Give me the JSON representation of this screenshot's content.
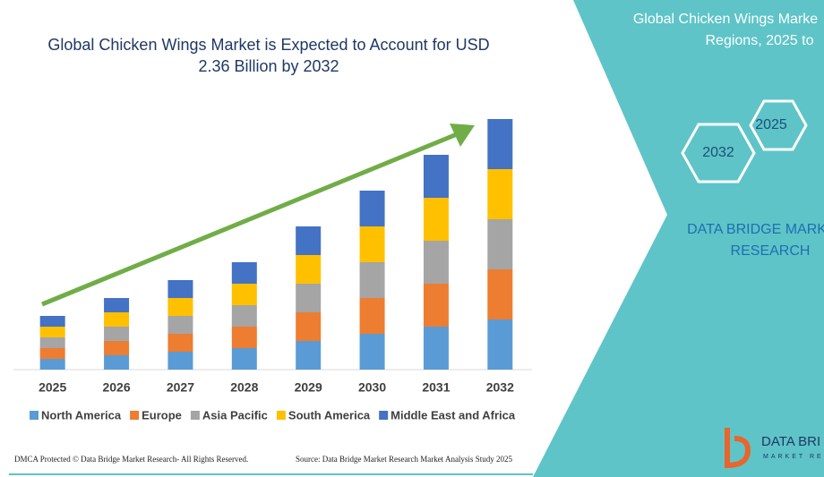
{
  "chart_data": {
    "type": "bar",
    "stacked": true,
    "title": "Global Chicken Wings Market is Expected to Account for USD 2.36 Billion by 2032",
    "categories": [
      "2025",
      "2026",
      "2027",
      "2028",
      "2029",
      "2030",
      "2031",
      "2032"
    ],
    "series": [
      {
        "name": "North America",
        "color": "#5b9bd5",
        "values": [
          12,
          16,
          20,
          24,
          32,
          40,
          48,
          56
        ]
      },
      {
        "name": "Europe",
        "color": "#ed7d31",
        "values": [
          12,
          16,
          20,
          24,
          32,
          40,
          48,
          56
        ]
      },
      {
        "name": "Asia Pacific",
        "color": "#a5a5a5",
        "values": [
          12,
          16,
          20,
          24,
          32,
          40,
          48,
          56
        ]
      },
      {
        "name": "South America",
        "color": "#ffc000",
        "values": [
          12,
          16,
          20,
          24,
          32,
          40,
          48,
          56
        ]
      },
      {
        "name": "Middle East and Africa",
        "color": "#4472c4",
        "values": [
          12,
          16,
          20,
          24,
          32,
          40,
          48,
          56
        ]
      }
    ],
    "ylim": [
      0,
      300
    ],
    "legend": "bottom",
    "trend_arrow_color": "#70ad47"
  },
  "panel": {
    "title_lines": [
      "Global Chicken Wings Marke",
      "Regions, 2025 to"
    ],
    "hexagons": [
      "2025",
      "2032"
    ],
    "brand_lines": [
      "DATA BRIDGE MARK",
      "RESEARCH"
    ]
  },
  "footer": {
    "left": "DMCA Protected © Data Bridge Market Research-  All Rights Reserved.",
    "right": "Source: Data Bridge Market Research  Market Analysis Study 2025"
  },
  "logo": {
    "name": "DATA BRI",
    "tagline": "MARKET RE"
  }
}
